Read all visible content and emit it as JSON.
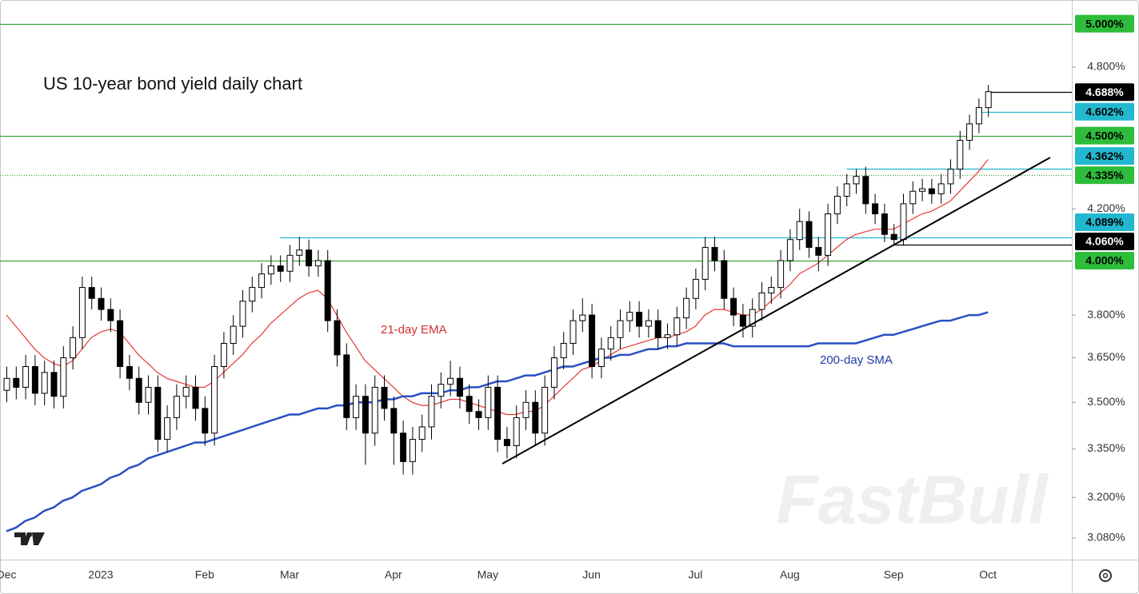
{
  "chart_data": {
    "type": "candlestick",
    "title": "US 10-year bond yield daily chart",
    "watermark": "FastBull",
    "log_scale": true,
    "categories": [
      "Dec",
      null,
      null,
      null,
      null,
      null,
      null,
      null,
      null,
      null,
      "2023",
      null,
      null,
      null,
      null,
      null,
      null,
      null,
      null,
      null,
      null,
      "Feb",
      null,
      null,
      null,
      null,
      null,
      null,
      null,
      null,
      "Mar",
      null,
      null,
      null,
      null,
      null,
      null,
      null,
      null,
      null,
      null,
      "Apr",
      null,
      null,
      null,
      null,
      null,
      null,
      null,
      null,
      null,
      "May",
      null,
      null,
      null,
      null,
      null,
      null,
      null,
      null,
      null,
      null,
      "Jun",
      null,
      null,
      null,
      null,
      null,
      null,
      null,
      null,
      null,
      null,
      "Jul",
      null,
      null,
      null,
      null,
      null,
      null,
      null,
      null,
      null,
      "Aug",
      null,
      null,
      null,
      null,
      null,
      null,
      null,
      null,
      null,
      null,
      "Sep",
      null,
      null,
      null,
      null,
      null,
      null,
      null,
      null,
      null,
      "Oct"
    ],
    "open": [
      3.54,
      3.58,
      3.55,
      3.62,
      3.53,
      3.6,
      3.52,
      3.65,
      3.72,
      3.9,
      3.86,
      3.82,
      3.78,
      3.62,
      3.58,
      3.5,
      3.55,
      3.38,
      3.45,
      3.52,
      3.55,
      3.48,
      3.4,
      3.62,
      3.7,
      3.76,
      3.85,
      3.9,
      3.95,
      3.98,
      3.96,
      4.02,
      4.04,
      3.98,
      4.0,
      3.78,
      3.66,
      3.45,
      3.52,
      3.4,
      3.55,
      3.48,
      3.4,
      3.31,
      3.38,
      3.42,
      3.52,
      3.56,
      3.58,
      3.52,
      3.47,
      3.45,
      3.55,
      3.38,
      3.36,
      3.45,
      3.5,
      3.4,
      3.55,
      3.65,
      3.7,
      3.78,
      3.8,
      3.62,
      3.68,
      3.72,
      3.78,
      3.81,
      3.76,
      3.78,
      3.72,
      3.73,
      3.79,
      3.86,
      3.93,
      4.05,
      4.0,
      3.86,
      3.8,
      3.76,
      3.82,
      3.88,
      3.9,
      4.0,
      4.08,
      4.15,
      4.05,
      4.02,
      4.18,
      4.25,
      4.3,
      4.33,
      4.22,
      4.18,
      4.1,
      4.08,
      4.22,
      4.27,
      4.28,
      4.26,
      4.3,
      4.36,
      4.48,
      4.55,
      4.62
    ],
    "high": [
      3.62,
      3.62,
      3.66,
      3.66,
      3.64,
      3.64,
      3.69,
      3.76,
      3.94,
      3.94,
      3.9,
      3.86,
      3.82,
      3.66,
      3.62,
      3.59,
      3.59,
      3.49,
      3.56,
      3.59,
      3.59,
      3.52,
      3.66,
      3.74,
      3.8,
      3.89,
      3.94,
      3.99,
      4.02,
      4.02,
      4.06,
      4.09,
      4.08,
      4.04,
      4.04,
      3.82,
      3.7,
      3.56,
      3.56,
      3.59,
      3.59,
      3.52,
      3.44,
      3.42,
      3.46,
      3.56,
      3.6,
      3.64,
      3.62,
      3.56,
      3.51,
      3.59,
      3.59,
      3.42,
      3.49,
      3.54,
      3.54,
      3.59,
      3.69,
      3.74,
      3.82,
      3.86,
      3.84,
      3.72,
      3.76,
      3.82,
      3.85,
      3.85,
      3.82,
      3.82,
      3.77,
      3.83,
      3.9,
      3.97,
      4.09,
      4.09,
      4.04,
      3.9,
      3.84,
      3.86,
      3.92,
      3.94,
      4.04,
      4.12,
      4.2,
      4.19,
      4.09,
      4.22,
      4.29,
      4.34,
      4.36,
      4.37,
      4.26,
      4.22,
      4.14,
      4.26,
      4.31,
      4.32,
      4.32,
      4.34,
      4.4,
      4.52,
      4.59,
      4.66,
      4.72
    ],
    "low": [
      3.5,
      3.51,
      3.51,
      3.49,
      3.49,
      3.48,
      3.48,
      3.61,
      3.68,
      3.82,
      3.78,
      3.74,
      3.58,
      3.54,
      3.46,
      3.46,
      3.34,
      3.34,
      3.41,
      3.48,
      3.44,
      3.36,
      3.36,
      3.58,
      3.66,
      3.72,
      3.81,
      3.86,
      3.91,
      3.92,
      3.92,
      3.98,
      3.94,
      3.94,
      3.74,
      3.62,
      3.41,
      3.41,
      3.3,
      3.36,
      3.44,
      3.3,
      3.27,
      3.27,
      3.34,
      3.38,
      3.48,
      3.52,
      3.48,
      3.43,
      3.41,
      3.41,
      3.34,
      3.32,
      3.32,
      3.41,
      3.36,
      3.36,
      3.51,
      3.61,
      3.66,
      3.74,
      3.58,
      3.58,
      3.64,
      3.68,
      3.74,
      3.72,
      3.72,
      3.68,
      3.68,
      3.69,
      3.75,
      3.82,
      3.89,
      3.96,
      3.82,
      3.76,
      3.72,
      3.72,
      3.78,
      3.84,
      3.86,
      3.96,
      4.04,
      4.01,
      3.96,
      3.98,
      4.14,
      4.21,
      4.26,
      4.18,
      4.14,
      4.07,
      4.06,
      4.06,
      4.18,
      4.23,
      4.22,
      4.22,
      4.26,
      4.32,
      4.44,
      4.51,
      4.58
    ],
    "close": [
      3.58,
      3.55,
      3.62,
      3.53,
      3.6,
      3.52,
      3.65,
      3.72,
      3.9,
      3.86,
      3.82,
      3.78,
      3.62,
      3.58,
      3.5,
      3.55,
      3.38,
      3.45,
      3.52,
      3.55,
      3.48,
      3.4,
      3.62,
      3.7,
      3.76,
      3.85,
      3.9,
      3.95,
      3.98,
      3.96,
      4.02,
      4.04,
      3.98,
      4.0,
      3.78,
      3.66,
      3.45,
      3.52,
      3.4,
      3.55,
      3.48,
      3.4,
      3.31,
      3.38,
      3.42,
      3.52,
      3.56,
      3.58,
      3.52,
      3.47,
      3.45,
      3.55,
      3.38,
      3.36,
      3.45,
      3.5,
      3.4,
      3.55,
      3.65,
      3.7,
      3.78,
      3.8,
      3.62,
      3.68,
      3.72,
      3.78,
      3.81,
      3.76,
      3.78,
      3.72,
      3.73,
      3.79,
      3.86,
      3.93,
      4.05,
      4.0,
      3.86,
      3.8,
      3.76,
      3.82,
      3.88,
      3.9,
      4.0,
      4.08,
      4.15,
      4.05,
      4.02,
      4.18,
      4.25,
      4.3,
      4.33,
      4.22,
      4.18,
      4.1,
      4.08,
      4.22,
      4.27,
      4.28,
      4.26,
      4.3,
      4.36,
      4.48,
      4.55,
      4.62,
      4.69
    ],
    "up_color": "#ffffff",
    "down_color": "#000000",
    "series": [
      {
        "name": "21-day EMA",
        "color": "#e53935",
        "values": [
          3.8,
          3.76,
          3.72,
          3.68,
          3.65,
          3.63,
          3.62,
          3.64,
          3.68,
          3.72,
          3.74,
          3.75,
          3.74,
          3.7,
          3.66,
          3.63,
          3.6,
          3.58,
          3.57,
          3.56,
          3.55,
          3.55,
          3.57,
          3.6,
          3.63,
          3.66,
          3.7,
          3.73,
          3.77,
          3.8,
          3.83,
          3.86,
          3.88,
          3.89,
          3.86,
          3.8,
          3.74,
          3.69,
          3.64,
          3.61,
          3.58,
          3.55,
          3.52,
          3.5,
          3.49,
          3.49,
          3.5,
          3.51,
          3.51,
          3.5,
          3.49,
          3.48,
          3.47,
          3.46,
          3.46,
          3.47,
          3.47,
          3.49,
          3.52,
          3.55,
          3.58,
          3.61,
          3.62,
          3.64,
          3.66,
          3.68,
          3.69,
          3.7,
          3.71,
          3.72,
          3.72,
          3.73,
          3.74,
          3.76,
          3.8,
          3.82,
          3.82,
          3.81,
          3.8,
          3.8,
          3.82,
          3.85,
          3.88,
          3.91,
          3.95,
          3.97,
          3.99,
          4.02,
          4.05,
          4.08,
          4.1,
          4.11,
          4.12,
          4.12,
          4.12,
          4.14,
          4.16,
          4.18,
          4.19,
          4.21,
          4.23,
          4.27,
          4.31,
          4.35,
          4.4
        ]
      },
      {
        "name": "200-day SMA",
        "color": "#2a4fc4",
        "values": [
          3.1,
          3.11,
          3.13,
          3.14,
          3.16,
          3.17,
          3.19,
          3.2,
          3.22,
          3.23,
          3.24,
          3.26,
          3.27,
          3.29,
          3.3,
          3.32,
          3.33,
          3.34,
          3.35,
          3.36,
          3.37,
          3.37,
          3.38,
          3.39,
          3.4,
          3.41,
          3.42,
          3.43,
          3.44,
          3.45,
          3.46,
          3.46,
          3.47,
          3.48,
          3.48,
          3.49,
          3.49,
          3.5,
          3.5,
          3.5,
          3.51,
          3.51,
          3.52,
          3.52,
          3.53,
          3.53,
          3.53,
          3.54,
          3.54,
          3.55,
          3.55,
          3.56,
          3.57,
          3.57,
          3.58,
          3.59,
          3.59,
          3.6,
          3.61,
          3.62,
          3.62,
          3.63,
          3.64,
          3.65,
          3.65,
          3.66,
          3.66,
          3.67,
          3.68,
          3.68,
          3.69,
          3.69,
          3.7,
          3.7,
          3.7,
          3.7,
          3.7,
          3.69,
          3.69,
          3.69,
          3.69,
          3.69,
          3.69,
          3.69,
          3.69,
          3.69,
          3.7,
          3.7,
          3.7,
          3.7,
          3.7,
          3.71,
          3.72,
          3.73,
          3.73,
          3.74,
          3.75,
          3.76,
          3.77,
          3.78,
          3.78,
          3.79,
          3.8,
          3.8,
          3.81
        ]
      }
    ],
    "ylim": [
      3.018,
      5.113
    ],
    "yticks": [
      {
        "value": 3.08,
        "label": "3.080%"
      },
      {
        "value": 3.2,
        "label": "3.200%"
      },
      {
        "value": 3.35,
        "label": "3.350%"
      },
      {
        "value": 3.5,
        "label": "3.500%"
      },
      {
        "value": 3.65,
        "label": "3.650%"
      },
      {
        "value": 3.8,
        "label": "3.800%"
      },
      {
        "value": 4.2,
        "label": "4.200%"
      },
      {
        "value": 4.8,
        "label": "4.800%"
      }
    ],
    "levels": [
      {
        "value": 5.0,
        "label": "5.000%",
        "color": "#2ebd3a",
        "line_color": "#3aa53a"
      },
      {
        "value": 4.688,
        "label": "4.688%",
        "color": "#000000",
        "line_color": "#000000"
      },
      {
        "value": 4.602,
        "label": "4.602%",
        "color": "#22b8cf",
        "line_color": "#22b8cf"
      },
      {
        "value": 4.5,
        "label": "4.500%",
        "color": "#2ebd3a",
        "line_color": "#3aa53a"
      },
      {
        "value": 4.362,
        "label": "4.362%",
        "color": "#22b8cf",
        "line_color": "#22b8cf"
      },
      {
        "value": 4.335,
        "label": "4.335%",
        "color": "#2ebd3a",
        "line_color": "#3aa53a",
        "dotted": true
      },
      {
        "value": 4.089,
        "label": "4.089%",
        "color": "#22b8cf",
        "line_color": "#22b8cf"
      },
      {
        "value": 4.06,
        "label": "4.060%",
        "color": "#000000",
        "line_color": "#000000"
      },
      {
        "value": 4.0,
        "label": "4.000%",
        "color": "#2ebd3a",
        "line_color": "#3aa53a"
      }
    ]
  }
}
